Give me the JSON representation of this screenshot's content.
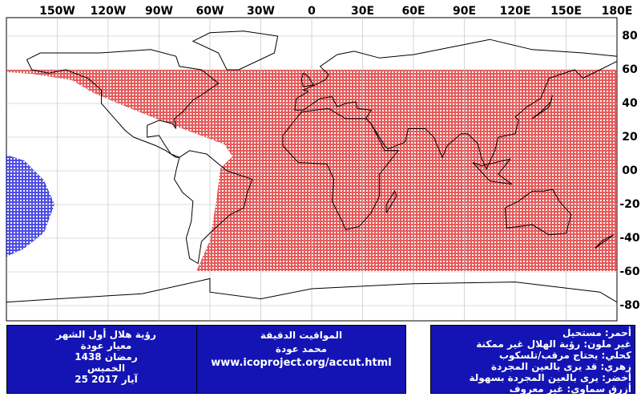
{
  "map": {
    "lon_labels": [
      "150W",
      "120W",
      "90W",
      "60W",
      "30W",
      "0",
      "30E",
      "60E",
      "90E",
      "120E",
      "150E",
      "180E"
    ],
    "lat_labels": [
      "80",
      "60",
      "40",
      "20",
      "00",
      "-20",
      "-40",
      "-60",
      "-80"
    ]
  },
  "info_left": {
    "lines": [
      "رؤية هلال أول الشهر",
      "معيار عودة",
      "رمضان 1438",
      "الخميس",
      "25 آيار 2017"
    ]
  },
  "info_middle": {
    "lines": [
      "المواقيت الدقيقة",
      "محمد عودة",
      "www.icoproject.org/accut.html"
    ]
  },
  "legend": {
    "lines": [
      "أحمر: مستحيل",
      "غير ملون: رؤية الهلال غير ممكنة",
      "كحلي: يحتاج مرقب/تلسكوب",
      "زهري: قد يرى بالعين المجردة",
      "أخضر: يرى بالعين المجردة بسهولة",
      "أزرق سماوي: غير معروف"
    ]
  }
}
